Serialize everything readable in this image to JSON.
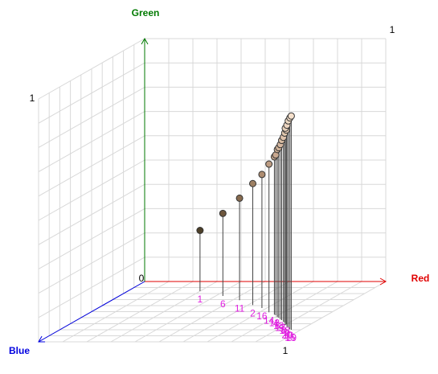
{
  "chart_data": {
    "type": "scatter3d",
    "x_label": "Red",
    "y_label": "Green",
    "z_label": "Blue",
    "x_color": "#e00000",
    "y_color": "#007a00",
    "z_color": "#0000e0",
    "xlim": [
      0,
      1
    ],
    "ylim": [
      0,
      1
    ],
    "zlim": [
      0,
      1
    ],
    "grid": true,
    "labels": [
      "1",
      "6",
      "11",
      "2",
      "16",
      "14",
      "12",
      "4",
      "3",
      "13",
      "17",
      "5",
      "8",
      "18",
      "9",
      "7",
      "20",
      "10",
      "15",
      "19"
    ],
    "x": [
      0.3,
      0.43,
      0.53,
      0.62,
      0.68,
      0.74,
      0.78,
      0.79,
      0.81,
      0.82,
      0.84,
      0.85,
      0.87,
      0.88,
      0.9,
      0.9,
      0.92,
      0.93,
      0.95,
      0.96
    ],
    "y": [
      0.25,
      0.34,
      0.42,
      0.5,
      0.55,
      0.61,
      0.65,
      0.66,
      0.69,
      0.7,
      0.72,
      0.74,
      0.76,
      0.78,
      0.8,
      0.81,
      0.83,
      0.85,
      0.87,
      0.88
    ],
    "z": [
      0.16,
      0.24,
      0.31,
      0.39,
      0.44,
      0.51,
      0.55,
      0.56,
      0.59,
      0.6,
      0.63,
      0.64,
      0.67,
      0.68,
      0.71,
      0.72,
      0.75,
      0.76,
      0.79,
      0.8
    ]
  }
}
